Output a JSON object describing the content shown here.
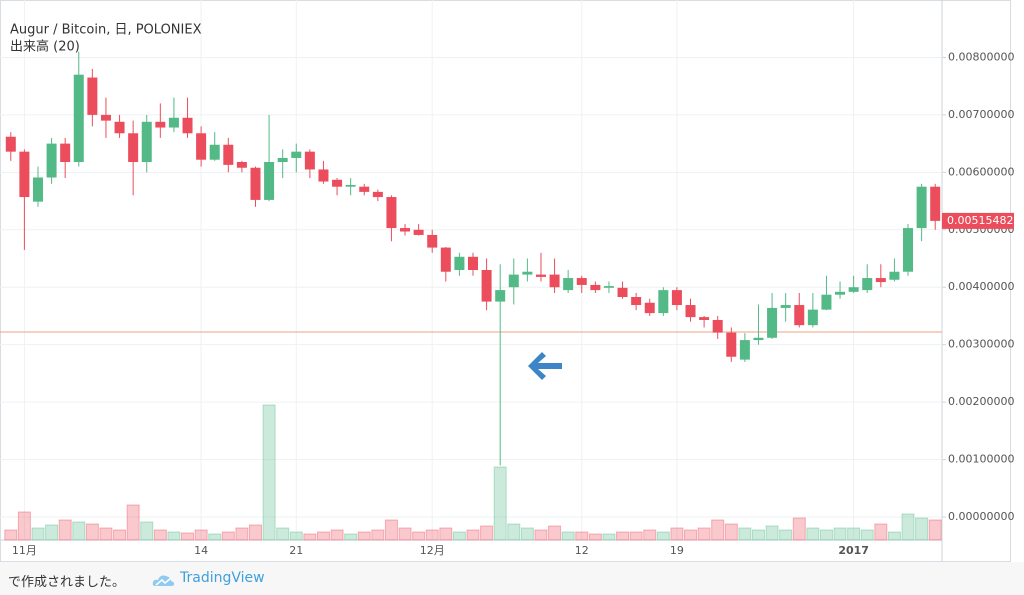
{
  "chart_data": {
    "type": "candlestick",
    "title": "Augur / Bitcoin, 日, POLONIEX",
    "categories": [
      null,
      "11月",
      null,
      null,
      null,
      null,
      null,
      null,
      null,
      null,
      null,
      null,
      null,
      null,
      "14",
      null,
      null,
      null,
      null,
      null,
      null,
      "21",
      null,
      null,
      null,
      null,
      null,
      null,
      null,
      null,
      null,
      "12月",
      null,
      null,
      null,
      null,
      null,
      null,
      null,
      null,
      null,
      null,
      "12",
      null,
      null,
      null,
      null,
      null,
      null,
      "19",
      null,
      null,
      null,
      null,
      null,
      null,
      null,
      null,
      null,
      null,
      null,
      null,
      "2017",
      null,
      null,
      null,
      null,
      null,
      null
    ],
    "open": [
      0.00662,
      0.00636,
      0.00549,
      0.00591,
      0.0065,
      0.00618,
      0.00765,
      0.007,
      0.00688,
      0.00668,
      0.00618,
      0.00688,
      0.00678,
      0.00695,
      0.00668,
      0.00622,
      0.00648,
      0.00618,
      0.00608,
      0.00552,
      0.00618,
      0.00625,
      0.00636,
      0.00605,
      0.00587,
      0.00575,
      0.00575,
      0.00566,
      0.00557,
      0.00503,
      0.005,
      0.00491,
      0.00469,
      0.0043,
      0.00453,
      0.0043,
      0.00375,
      0.004,
      0.00422,
      0.00422,
      0.00422,
      0.00395,
      0.00416,
      0.00404,
      0.00399,
      0.00399,
      0.00383,
      0.00373,
      0.00355,
      0.00395,
      0.00369,
      0.00348,
      0.00343,
      0.00321,
      0.00274,
      0.00308,
      0.00312,
      0.00364,
      0.00369,
      0.00334,
      0.00361,
      0.00387,
      0.00392,
      0.00395,
      0.00416,
      0.00413,
      0.00427,
      0.00503,
      0.00575
    ],
    "high": [
      0.0067,
      0.0064,
      0.0061,
      0.0066,
      0.0066,
      0.0081,
      0.0078,
      0.0073,
      0.007,
      0.0069,
      0.007,
      0.0072,
      0.0073,
      0.0073,
      0.0068,
      0.0067,
      0.0066,
      0.0062,
      0.0061,
      0.007,
      0.0064,
      0.0065,
      0.0064,
      0.0062,
      0.0059,
      0.0059,
      0.0058,
      0.0057,
      0.0056,
      0.0051,
      0.0051,
      0.005,
      0.0047,
      0.0046,
      0.0046,
      0.0045,
      0.0044,
      0.0045,
      0.0045,
      0.0046,
      0.0045,
      0.0043,
      0.0042,
      0.0041,
      0.0041,
      0.0041,
      0.0039,
      0.0038,
      0.004,
      0.004,
      0.0038,
      0.0035,
      0.0035,
      0.0033,
      0.0032,
      0.0037,
      0.0039,
      0.0039,
      0.0039,
      0.0039,
      0.0042,
      0.0041,
      0.0042,
      0.0044,
      0.0044,
      0.0045,
      0.0051,
      0.0058,
      0.0058
    ],
    "low": [
      0.0062,
      0.00465,
      0.0054,
      0.0058,
      0.0059,
      0.0061,
      0.0068,
      0.0066,
      0.0066,
      0.0056,
      0.006,
      0.0066,
      0.0067,
      0.0066,
      0.0061,
      0.0062,
      0.006,
      0.006,
      0.0054,
      0.0055,
      0.0059,
      0.006,
      0.0059,
      0.0058,
      0.0056,
      0.0056,
      0.0056,
      0.0055,
      0.0048,
      0.0049,
      0.0049,
      0.0046,
      0.0041,
      0.0042,
      0.0042,
      0.0036,
      0.0009,
      0.0037,
      0.0041,
      0.0041,
      0.0039,
      0.0039,
      0.0039,
      0.0039,
      0.0039,
      0.0038,
      0.0036,
      0.0035,
      0.0035,
      0.0036,
      0.0034,
      0.0033,
      0.0031,
      0.0027,
      0.0027,
      0.003,
      0.0031,
      0.0034,
      0.0033,
      0.0033,
      0.0036,
      0.0038,
      0.0039,
      0.0039,
      0.004,
      0.0041,
      0.0042,
      0.0048,
      0.005
    ],
    "close": [
      0.00636,
      0.00557,
      0.00591,
      0.0065,
      0.00618,
      0.0077,
      0.007,
      0.0069,
      0.00668,
      0.00618,
      0.00688,
      0.00678,
      0.00695,
      0.00668,
      0.00622,
      0.00648,
      0.00613,
      0.00608,
      0.00552,
      0.00618,
      0.00625,
      0.00636,
      0.00605,
      0.00584,
      0.00575,
      0.00578,
      0.00566,
      0.00557,
      0.00503,
      0.00497,
      0.00491,
      0.00469,
      0.00427,
      0.00453,
      0.0043,
      0.00375,
      0.00395,
      0.00422,
      0.00427,
      0.00418,
      0.004,
      0.00416,
      0.00404,
      0.00395,
      0.00402,
      0.00383,
      0.00369,
      0.00355,
      0.00395,
      0.00369,
      0.00348,
      0.00343,
      0.00321,
      0.00279,
      0.00308,
      0.00312,
      0.00364,
      0.00369,
      0.00334,
      0.00361,
      0.00387,
      0.00392,
      0.004,
      0.00416,
      0.00409,
      0.00427,
      0.00503,
      0.00575,
      0.00515482
    ],
    "volume": {
      "name": "出来高 (20)",
      "values": [
        10,
        28,
        12,
        15,
        20,
        18,
        16,
        12,
        10,
        35,
        18,
        10,
        8,
        7,
        10,
        6,
        8,
        12,
        15,
        135,
        12,
        8,
        6,
        8,
        10,
        6,
        8,
        10,
        20,
        12,
        8,
        10,
        12,
        8,
        10,
        14,
        73,
        16,
        12,
        10,
        14,
        8,
        8,
        6,
        6,
        8,
        8,
        10,
        8,
        12,
        10,
        12,
        20,
        16,
        12,
        10,
        14,
        10,
        22,
        12,
        10,
        12,
        12,
        10,
        16,
        8,
        26,
        22,
        20
      ]
    },
    "up_color": "#53b987",
    "down_color": "#eb4d5c",
    "price_line": 0.00322,
    "price_tag": {
      "value": 0.00515482,
      "label": "0.00515482"
    },
    "ylim": [
      -0.0004,
      0.009
    ],
    "yticks": [
      {
        "value": 0,
        "label": "0.00000000"
      },
      {
        "value": 0.001,
        "label": "0.00100000"
      },
      {
        "value": 0.002,
        "label": "0.00200000"
      },
      {
        "value": 0.003,
        "label": "0.00300000"
      },
      {
        "value": 0.004,
        "label": "0.00400000"
      },
      {
        "value": 0.005,
        "label": "0.00500000"
      },
      {
        "value": 0.006,
        "label": "0.00600000"
      },
      {
        "value": 0.007,
        "label": "0.00700000"
      },
      {
        "value": 0.008,
        "label": "0.00800000"
      }
    ],
    "grid": true
  },
  "footer": {
    "text": "で作成されました。",
    "brand": "TradingView"
  }
}
